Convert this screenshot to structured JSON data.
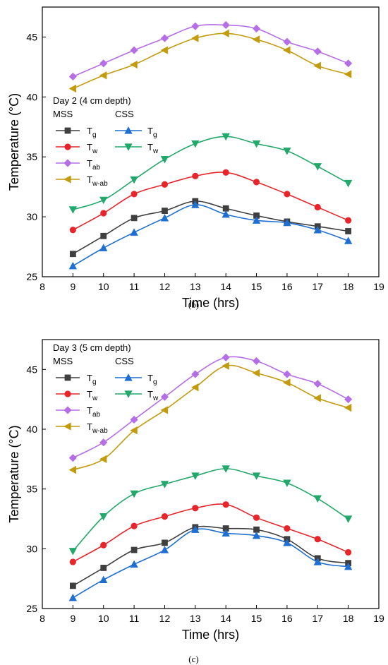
{
  "chart_data": [
    {
      "type": "line",
      "panel_label": "(b)",
      "legend_title": "Day 2 (4 cm depth)",
      "group_labels": [
        "MSS",
        "CSS"
      ],
      "xlabel": "Time (hrs)",
      "ylabel": "Temperature (°C)",
      "xlim": [
        8,
        19
      ],
      "ylim": [
        25,
        47.5
      ],
      "xticks": [
        8,
        9,
        10,
        11,
        12,
        13,
        14,
        15,
        16,
        17,
        18,
        19
      ],
      "yticks": [
        25,
        30,
        35,
        40,
        45
      ],
      "x": [
        9,
        10,
        11,
        12,
        13,
        14,
        15,
        16,
        17,
        18
      ],
      "series": [
        {
          "group": "MSS",
          "base": "T",
          "sub": "g",
          "color": "#3f3f3f",
          "marker": "square",
          "values": [
            26.9,
            28.4,
            29.9,
            30.5,
            31.3,
            30.7,
            30.1,
            29.6,
            29.2,
            28.8
          ]
        },
        {
          "group": "MSS",
          "base": "T",
          "sub": "w",
          "color": "#e8252a",
          "marker": "circle",
          "values": [
            28.9,
            30.3,
            31.9,
            32.7,
            33.4,
            33.7,
            32.9,
            31.9,
            30.8,
            29.7
          ]
        },
        {
          "group": "MSS",
          "base": "T",
          "sub": "ab",
          "color": "#b56ee6",
          "marker": "diamond",
          "values": [
            41.7,
            42.8,
            43.9,
            44.9,
            45.9,
            46.0,
            45.7,
            44.6,
            43.8,
            42.8
          ]
        },
        {
          "group": "MSS",
          "base": "T",
          "sub": "w-ab",
          "color": "#c29b0e",
          "marker": "triangle-left",
          "values": [
            40.7,
            41.8,
            42.7,
            43.9,
            44.9,
            45.3,
            44.8,
            43.9,
            42.6,
            41.9
          ]
        },
        {
          "group": "CSS",
          "base": "T",
          "sub": "g",
          "color": "#1f6fd1",
          "marker": "triangle-up",
          "values": [
            25.9,
            27.4,
            28.7,
            29.9,
            31.0,
            30.2,
            29.7,
            29.5,
            28.9,
            28.0
          ]
        },
        {
          "group": "CSS",
          "base": "T",
          "sub": "w",
          "color": "#22a86a",
          "marker": "triangle-down",
          "values": [
            30.6,
            31.4,
            33.1,
            34.8,
            36.1,
            36.7,
            36.1,
            35.5,
            34.2,
            32.8
          ]
        }
      ]
    },
    {
      "type": "line",
      "panel_label": "(c)",
      "legend_title": "Day 3 (5 cm depth)",
      "group_labels": [
        "MSS",
        "CSS"
      ],
      "xlabel": "Time (hrs)",
      "ylabel": "Temperature (°C)",
      "xlim": [
        8,
        19
      ],
      "ylim": [
        25,
        47.5
      ],
      "xticks": [
        8,
        9,
        10,
        11,
        12,
        13,
        14,
        15,
        16,
        17,
        18,
        19
      ],
      "yticks": [
        25,
        30,
        35,
        40,
        45
      ],
      "x": [
        9,
        10,
        11,
        12,
        13,
        14,
        15,
        16,
        17,
        18
      ],
      "series": [
        {
          "group": "MSS",
          "base": "T",
          "sub": "g",
          "color": "#3f3f3f",
          "marker": "square",
          "values": [
            26.9,
            28.4,
            29.9,
            30.5,
            31.8,
            31.7,
            31.6,
            30.8,
            29.2,
            28.8
          ]
        },
        {
          "group": "MSS",
          "base": "T",
          "sub": "w",
          "color": "#e8252a",
          "marker": "circle",
          "values": [
            28.9,
            30.3,
            31.9,
            32.7,
            33.4,
            33.7,
            32.6,
            31.7,
            30.8,
            29.7
          ]
        },
        {
          "group": "MSS",
          "base": "T",
          "sub": "ab",
          "color": "#b56ee6",
          "marker": "diamond",
          "values": [
            37.6,
            38.9,
            40.8,
            42.7,
            44.6,
            46.0,
            45.7,
            44.6,
            43.8,
            42.5
          ]
        },
        {
          "group": "MSS",
          "base": "T",
          "sub": "w-ab",
          "color": "#c29b0e",
          "marker": "triangle-left",
          "values": [
            36.6,
            37.5,
            39.9,
            41.6,
            43.5,
            45.3,
            44.7,
            43.9,
            42.6,
            41.8
          ]
        },
        {
          "group": "CSS",
          "base": "T",
          "sub": "g",
          "color": "#1f6fd1",
          "marker": "triangle-up",
          "values": [
            25.9,
            27.4,
            28.7,
            29.9,
            31.6,
            31.3,
            31.1,
            30.5,
            28.9,
            28.5
          ]
        },
        {
          "group": "CSS",
          "base": "T",
          "sub": "w",
          "color": "#22a86a",
          "marker": "triangle-down",
          "values": [
            29.8,
            32.7,
            34.6,
            35.4,
            36.1,
            36.7,
            36.1,
            35.5,
            34.2,
            32.5
          ]
        }
      ]
    }
  ]
}
